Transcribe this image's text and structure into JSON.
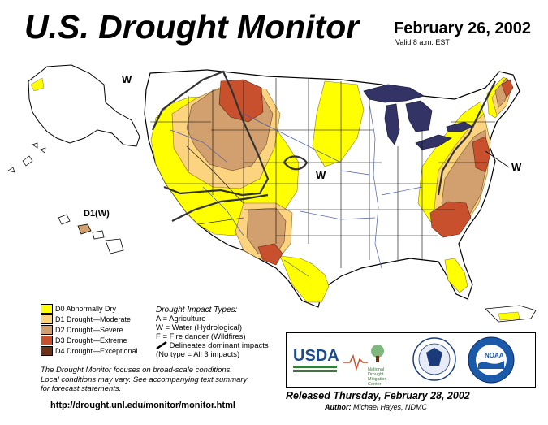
{
  "header": {
    "title": "U.S. Drought Monitor",
    "date": "February 26, 2002",
    "valid": "Valid 8 a.m. EST"
  },
  "map_labels": {
    "w_west": "W",
    "w_central": "W",
    "w_east": "W",
    "hawaii_label": "D1(W)"
  },
  "legend": [
    {
      "code": "D0",
      "label": "D0 Abnormally Dry",
      "color": "#ffff00"
    },
    {
      "code": "D1",
      "label": "D1 Drought—Moderate",
      "color": "#fcd37f"
    },
    {
      "code": "D2",
      "label": "D2 Drought—Severe",
      "color": "#d2a06e"
    },
    {
      "code": "D3",
      "label": "D3 Drought—Extreme",
      "color": "#c8502d"
    },
    {
      "code": "D4",
      "label": "D4 Drought—Exceptional",
      "color": "#6e3219"
    }
  ],
  "impact": {
    "heading": "Drought Impact Types:",
    "a": "A = Agriculture",
    "w": "W = Water (Hydrological)",
    "f": "F = Fire danger (Wildfires)",
    "line": "Delineates dominant impacts",
    "none": "(No type = All 3 impacts)"
  },
  "focus_note": {
    "line1": "The Drought Monitor focuses on broad-scale conditions.",
    "line2": "Local conditions may vary. See accompanying text summary",
    "line3": "for forecast statements."
  },
  "url": "http://drought.unl.edu/monitor/monitor.html",
  "logos": {
    "usda": "USDA",
    "ndmc_line1": "National",
    "ndmc_line2": "Drought",
    "ndmc_line3": "Mitigation",
    "ndmc_line4": "Center",
    "noaa": "NOAA"
  },
  "released": "Released Thursday, February 28, 2002",
  "author": {
    "prefix": "Author:",
    "name": "Michael Hayes, NDMC"
  },
  "colors": {
    "water": "#333366",
    "land": "#ffffff",
    "d0": "#ffff00",
    "d1": "#fcd37f",
    "d2": "#d2a06e",
    "d3": "#c8502d",
    "d4": "#6e3219",
    "river": "#4a5fa8"
  }
}
